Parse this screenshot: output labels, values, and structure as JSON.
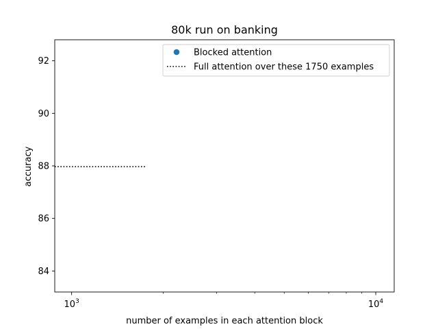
{
  "chart_data": {
    "type": "line",
    "title": "80k run on banking",
    "xlabel": "number of examples in each attention block",
    "ylabel": "accuracy",
    "xscale": "log",
    "xlim": [
      880,
      11500
    ],
    "ylim": [
      83.2,
      92.8
    ],
    "xticks": [
      {
        "value": 1000,
        "base": "10",
        "exp": "3"
      },
      {
        "value": 10000,
        "base": "10",
        "exp": "4"
      }
    ],
    "xminor": [
      2000,
      3000,
      4000,
      5000,
      6000,
      7000,
      8000,
      9000
    ],
    "yticks": [
      84,
      86,
      88,
      90,
      92
    ],
    "grid": false,
    "legend_position": "top-right",
    "series": [
      {
        "name": "Blocked attention",
        "kind": "scatter",
        "marker": "circle",
        "color": "#1f77b4",
        "points": []
      },
      {
        "name": "Full attention over these 1750 examples",
        "kind": "line",
        "style": "dotted",
        "color": "#000000",
        "x": [
          880,
          1750
        ],
        "y": [
          87.97,
          87.97
        ]
      }
    ]
  }
}
